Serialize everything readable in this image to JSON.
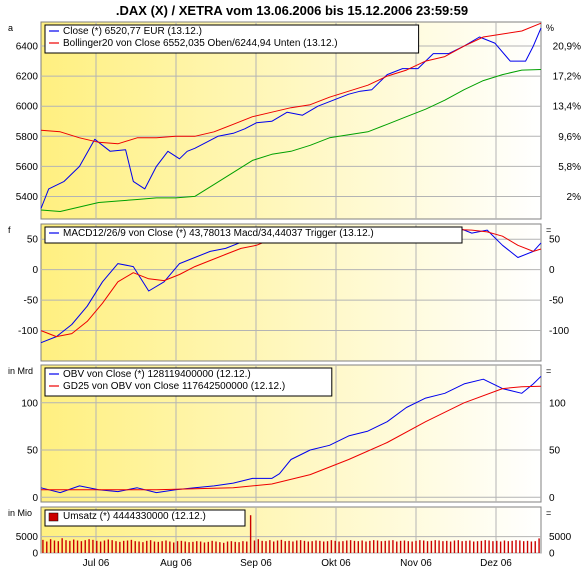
{
  "title": ".DAX (X) / XETRA vom 13.06.2006 bis 15.12.2006 23:59:59",
  "months": [
    "Jul 06",
    "Aug 06",
    "Sep 06",
    "Okt 06",
    "Nov 06",
    "Dez 06"
  ],
  "colors": {
    "close": "#0000ee",
    "bollinger_upper": "#ee0000",
    "bollinger_lower": "#00a000",
    "macd": "#0000ee",
    "trigger": "#ee0000",
    "obv": "#0000ee",
    "gd25": "#ee0000",
    "volume": "#cc0000",
    "gradient_start": "#fff080",
    "gradient_end": "#ffffff"
  },
  "chart_data": [
    {
      "type": "line",
      "name": "price",
      "corner_left": "a",
      "corner_right": "%",
      "ylim": [
        5250,
        6560
      ],
      "yticks": [
        5400,
        5600,
        5800,
        6000,
        6200,
        6400
      ],
      "right_ticks": [
        {
          "label": "20,9%",
          "value": 6400
        },
        {
          "label": "17,2%",
          "value": 6200
        },
        {
          "label": "13,4%",
          "value": 6000
        },
        {
          "label": "9,6%",
          "value": 5800
        },
        {
          "label": "5,8%",
          "value": 5600
        },
        {
          "label": "2%",
          "value": 5400
        }
      ],
      "legend": [
        "Close (*) 6520,77 EUR (13.12.)",
        "Bollinger20 von Close 6552,035 Oben/6244,94 Unten (13.12.)"
      ],
      "series": [
        {
          "key": "close",
          "x": [
            0,
            2,
            6,
            10,
            14,
            18,
            22,
            24,
            27,
            30,
            33,
            36,
            38,
            40,
            43,
            46,
            50,
            53,
            56,
            60,
            64,
            68,
            72,
            76,
            80,
            83,
            86,
            90,
            94,
            98,
            102,
            106,
            110,
            114,
            118,
            122,
            126,
            128,
            130
          ],
          "values": [
            5320,
            5450,
            5500,
            5600,
            5780,
            5700,
            5710,
            5500,
            5450,
            5600,
            5700,
            5650,
            5700,
            5720,
            5760,
            5800,
            5820,
            5850,
            5890,
            5900,
            5960,
            5940,
            6000,
            6040,
            6080,
            6100,
            6110,
            6210,
            6250,
            6250,
            6350,
            6350,
            6400,
            6460,
            6420,
            6300,
            6300,
            6400,
            6520
          ]
        },
        {
          "key": "bollinger_upper",
          "x": [
            0,
            5,
            10,
            15,
            20,
            25,
            30,
            35,
            40,
            45,
            50,
            55,
            60,
            65,
            70,
            75,
            80,
            85,
            90,
            95,
            100,
            105,
            110,
            115,
            120,
            125,
            130
          ],
          "values": [
            5840,
            5830,
            5790,
            5760,
            5750,
            5790,
            5790,
            5800,
            5800,
            5830,
            5880,
            5930,
            5960,
            5990,
            6010,
            6060,
            6100,
            6140,
            6200,
            6240,
            6300,
            6330,
            6400,
            6460,
            6480,
            6500,
            6552
          ]
        },
        {
          "key": "bollinger_lower",
          "x": [
            0,
            5,
            10,
            15,
            20,
            25,
            30,
            35,
            40,
            45,
            50,
            55,
            60,
            65,
            70,
            75,
            80,
            85,
            90,
            95,
            100,
            105,
            110,
            115,
            120,
            125,
            130
          ],
          "values": [
            5310,
            5300,
            5330,
            5360,
            5370,
            5380,
            5390,
            5390,
            5400,
            5480,
            5560,
            5640,
            5680,
            5700,
            5740,
            5790,
            5810,
            5830,
            5880,
            5930,
            5980,
            6040,
            6110,
            6170,
            6210,
            6240,
            6244
          ]
        }
      ]
    },
    {
      "type": "line",
      "name": "macd",
      "corner_left": "f",
      "corner_right": "=",
      "ylim": [
        -150,
        75
      ],
      "yticks": [
        -100,
        -50,
        0,
        50
      ],
      "legend": [
        "MACD12/26/9 von Close (*) 43,78013 Macd/34,44037 Trigger (13.12.)"
      ],
      "series": [
        {
          "key": "macd",
          "x": [
            0,
            4,
            8,
            12,
            16,
            20,
            24,
            28,
            32,
            36,
            40,
            44,
            48,
            52,
            56,
            60,
            64,
            68,
            72,
            76,
            80,
            84,
            88,
            92,
            96,
            100,
            104,
            108,
            112,
            116,
            120,
            124,
            128,
            130
          ],
          "values": [
            -120,
            -110,
            -90,
            -60,
            -20,
            10,
            5,
            -35,
            -20,
            10,
            20,
            30,
            35,
            45,
            55,
            60,
            55,
            45,
            50,
            55,
            60,
            65,
            60,
            70,
            60,
            65,
            65,
            70,
            60,
            65,
            40,
            20,
            30,
            44
          ]
        },
        {
          "key": "trigger",
          "x": [
            0,
            4,
            8,
            12,
            16,
            20,
            24,
            28,
            32,
            36,
            40,
            44,
            48,
            52,
            56,
            60,
            64,
            68,
            72,
            76,
            80,
            84,
            88,
            92,
            96,
            100,
            104,
            108,
            112,
            116,
            120,
            124,
            128,
            130
          ],
          "values": [
            -100,
            -110,
            -105,
            -85,
            -55,
            -20,
            -5,
            -15,
            -18,
            -8,
            5,
            15,
            25,
            35,
            40,
            50,
            55,
            50,
            48,
            50,
            55,
            60,
            62,
            65,
            65,
            62,
            64,
            66,
            65,
            62,
            55,
            40,
            30,
            34
          ]
        }
      ]
    },
    {
      "type": "line",
      "name": "obv",
      "corner_left": "in Mrd",
      "corner_right": "=",
      "ylim": [
        -5,
        140
      ],
      "yticks": [
        0,
        50,
        100
      ],
      "legend": [
        "OBV von Close (*) 128119400000 (12.12.)",
        "GD25 von OBV von Close 117642500000 (12.12.)"
      ],
      "series": [
        {
          "key": "obv",
          "x": [
            0,
            5,
            10,
            15,
            20,
            25,
            30,
            35,
            40,
            45,
            50,
            55,
            60,
            62,
            65,
            70,
            75,
            80,
            85,
            90,
            95,
            100,
            105,
            110,
            115,
            120,
            125,
            128,
            130
          ],
          "values": [
            10,
            5,
            12,
            8,
            6,
            10,
            5,
            8,
            10,
            12,
            15,
            20,
            20,
            25,
            40,
            50,
            55,
            65,
            70,
            80,
            95,
            105,
            110,
            120,
            125,
            115,
            110,
            120,
            128
          ]
        },
        {
          "key": "gd25",
          "x": [
            0,
            10,
            20,
            30,
            40,
            50,
            60,
            70,
            80,
            90,
            100,
            110,
            120,
            125,
            130
          ],
          "values": [
            8,
            8,
            8,
            8,
            9,
            10,
            14,
            24,
            40,
            58,
            80,
            100,
            115,
            117,
            117.6
          ]
        }
      ]
    },
    {
      "type": "bar",
      "name": "volume",
      "corner_left": "in Mio",
      "corner_right": "=",
      "ylim": [
        0,
        14000
      ],
      "yticks": [
        0,
        5000
      ],
      "legend": [
        "Umsatz (*) 4444330000 (12.12.)"
      ],
      "values": [
        4000,
        3500,
        4200,
        3800,
        3600,
        4500,
        3900,
        3700,
        4100,
        3800,
        3600,
        3900,
        4200,
        4000,
        3700,
        3500,
        3800,
        4100,
        3900,
        3600,
        3400,
        3700,
        3800,
        4000,
        3600,
        3500,
        3300,
        3700,
        3900,
        3500,
        3400,
        3600,
        3800,
        3500,
        3200,
        3600,
        3700,
        3500,
        3300,
        3400,
        3600,
        3500,
        3200,
        3400,
        3700,
        3500,
        3300,
        3100,
        3500,
        3600,
        3400,
        3300,
        3600,
        3500,
        11500,
        3800,
        4200,
        3700,
        3600,
        3900,
        3500,
        3800,
        4000,
        3600,
        3700,
        3500,
        3800,
        3900,
        3700,
        3500,
        3600,
        3800,
        3700,
        3500,
        3600,
        3900,
        3700,
        3500,
        3600,
        3800,
        3900,
        3700,
        3600,
        3800,
        3500,
        3700,
        3900,
        3800,
        3600,
        3700,
        3800,
        3900,
        3500,
        3700,
        3800,
        3600,
        3500,
        3700,
        3900,
        3800,
        3600,
        3700,
        3900,
        3800,
        3600,
        3700,
        3500,
        3800,
        3900,
        3600,
        3700,
        3800,
        3500,
        3600,
        3700,
        3900,
        3800,
        3600,
        3700,
        3500,
        3800,
        3600,
        3700,
        3900,
        3800,
        3600,
        3700,
        3500,
        3600,
        4444
      ]
    }
  ]
}
